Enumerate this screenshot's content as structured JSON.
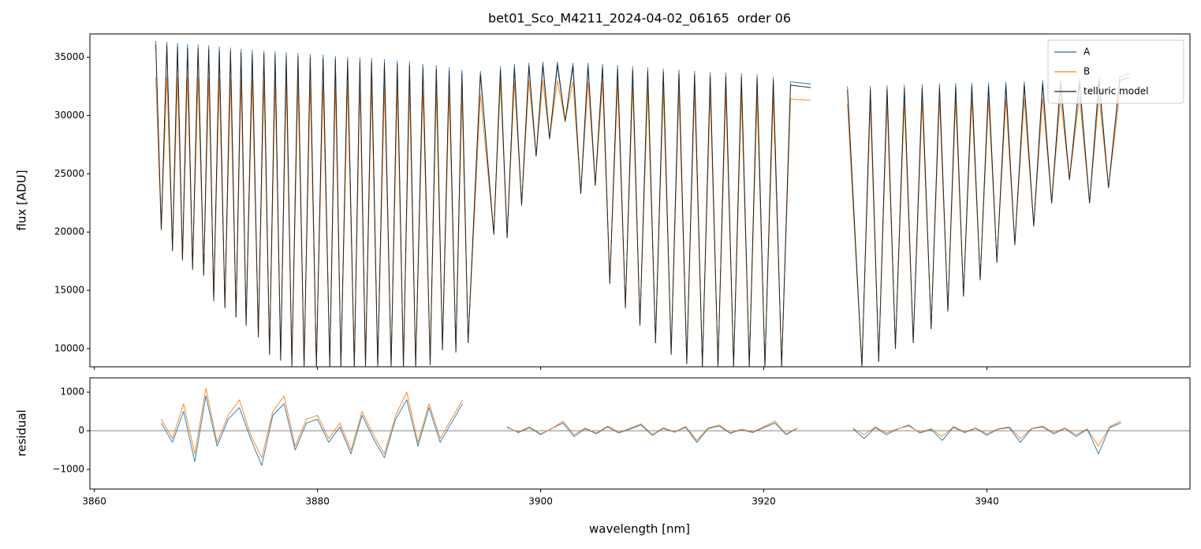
{
  "chart_data": [
    {
      "type": "line",
      "title": "bet01_Sco_M4211_2024-04-02_06165  order 06",
      "ylabel": "flux [ADU]",
      "xlim": [
        3859.6,
        3958.2
      ],
      "ylim": [
        8440,
        37000
      ],
      "yticks": [
        10000,
        15000,
        20000,
        25000,
        30000,
        35000
      ],
      "legend": "upper right",
      "x": [
        3865.5,
        3866.0,
        3866.5,
        3867.0,
        3867.45,
        3867.9,
        3868.35,
        3868.8,
        3869.3,
        3869.8,
        3870.25,
        3870.7,
        3871.2,
        3871.7,
        3872.2,
        3872.7,
        3873.15,
        3873.6,
        3874.15,
        3874.7,
        3875.2,
        3875.7,
        3876.2,
        3876.7,
        3877.2,
        3877.7,
        3878.25,
        3878.8,
        3879.35,
        3879.9,
        3880.5,
        3881.1,
        3881.6,
        3882.1,
        3882.7,
        3883.3,
        3883.8,
        3884.3,
        3884.85,
        3885.4,
        3886.0,
        3886.6,
        3887.15,
        3887.7,
        3888.25,
        3888.8,
        3889.45,
        3890.1,
        3890.65,
        3891.2,
        3891.8,
        3892.4,
        3892.95,
        3893.5,
        3894.6,
        3895.8,
        3896.4,
        3897.0,
        3897.65,
        3898.3,
        3898.95,
        3899.6,
        3900.2,
        3900.8,
        3901.5,
        3902.2,
        3902.9,
        3903.6,
        3904.25,
        3904.9,
        3905.55,
        3906.2,
        3906.9,
        3907.6,
        3908.25,
        3908.9,
        3909.6,
        3910.3,
        3911.0,
        3911.7,
        3912.4,
        3913.1,
        3913.8,
        3914.5,
        3915.2,
        3915.9,
        3916.6,
        3917.3,
        3918.0,
        3918.7,
        3919.4,
        3920.1,
        3920.85,
        3921.6,
        3922.4,
        3924.2,
        3925.5,
        3927.5,
        3928.8,
        3929.55,
        3930.3,
        3931.05,
        3931.8,
        3932.6,
        3933.4,
        3934.2,
        3935.0,
        3935.75,
        3936.5,
        3937.2,
        3937.9,
        3938.65,
        3939.4,
        3940.15,
        3940.9,
        3941.7,
        3942.5,
        3943.35,
        3944.2,
        3945.0,
        3945.8,
        3946.6,
        3947.4,
        3948.3,
        3949.2,
        3950.05,
        3950.9,
        3951.9,
        3952.8
      ],
      "series": [
        {
          "name": "A",
          "color": "#1f77b4",
          "values": [
            36400,
            20200,
            36300,
            18400,
            36200,
            17600,
            36100,
            16800,
            36050,
            16300,
            36000,
            14100,
            35900,
            13500,
            35800,
            12700,
            35700,
            12000,
            35600,
            11000,
            35550,
            9500,
            35500,
            9000,
            35400,
            8500,
            35350,
            8440,
            35250,
            8440,
            35200,
            8440,
            35100,
            8440,
            35000,
            8440,
            34950,
            8440,
            34900,
            8440,
            34800,
            8440,
            34700,
            8440,
            34600,
            8440,
            34400,
            8600,
            34300,
            9900,
            34100,
            9700,
            33900,
            10500,
            33800,
            19800,
            34200,
            19500,
            34400,
            22300,
            34500,
            26500,
            34600,
            28000,
            34600,
            29500,
            34500,
            23300,
            34500,
            24000,
            34400,
            15600,
            34300,
            13500,
            34200,
            12000,
            34100,
            10500,
            34000,
            9500,
            33900,
            8700,
            33800,
            8500,
            33700,
            8440,
            33650,
            8440,
            33600,
            8440,
            33500,
            8440,
            33300,
            8440,
            32900,
            32700,
            null,
            32500,
            8440,
            32500,
            8900,
            32550,
            10000,
            32600,
            10500,
            32650,
            11700,
            32700,
            13200,
            32750,
            14500,
            32800,
            15900,
            32800,
            17400,
            32850,
            18900,
            32900,
            20500,
            33000,
            22500,
            33050,
            24500,
            33100,
            22500,
            33200,
            23800,
            33300,
            33600
          ]
        },
        {
          "name": "B",
          "color": "#ff7f0e",
          "values": [
            33300,
            20200,
            33300,
            18400,
            33250,
            17600,
            33200,
            16800,
            33200,
            16300,
            33150,
            14100,
            33150,
            13500,
            33100,
            12700,
            33100,
            12000,
            33050,
            11000,
            33000,
            9500,
            32950,
            9000,
            32900,
            8500,
            32850,
            8440,
            32800,
            8440,
            32800,
            8440,
            32750,
            8440,
            32700,
            8440,
            32650,
            8440,
            32600,
            8440,
            32500,
            8440,
            32400,
            8440,
            32300,
            8440,
            32200,
            8600,
            32100,
            9900,
            32000,
            9700,
            31800,
            10500,
            31800,
            19800,
            32800,
            19500,
            32900,
            22300,
            33000,
            26500,
            33000,
            28000,
            33000,
            29500,
            32900,
            23300,
            32850,
            24000,
            32800,
            15600,
            32700,
            13500,
            32500,
            12000,
            32300,
            10500,
            32200,
            9500,
            32100,
            8700,
            32050,
            8500,
            32000,
            8440,
            31900,
            8440,
            31800,
            8440,
            31600,
            8440,
            31500,
            8440,
            31400,
            31300,
            null,
            31000,
            8440,
            31000,
            8900,
            31050,
            10000,
            31100,
            10500,
            31200,
            11700,
            31300,
            13200,
            31300,
            14500,
            31350,
            15900,
            31400,
            17400,
            31400,
            18900,
            31450,
            20500,
            31500,
            22500,
            31500,
            24500,
            31600,
            22500,
            31700,
            23800,
            31800,
            32000
          ]
        },
        {
          "name": "telluric model",
          "color": "#222222",
          "values": [
            36100,
            20200,
            36000,
            18400,
            35900,
            17600,
            35800,
            16800,
            35750,
            16300,
            35700,
            14100,
            35600,
            13500,
            35500,
            12700,
            35400,
            12000,
            35300,
            11000,
            35250,
            9500,
            35200,
            9000,
            35100,
            8500,
            35050,
            8440,
            34950,
            8440,
            34900,
            8440,
            34800,
            8440,
            34700,
            8440,
            34650,
            8440,
            34600,
            8440,
            34500,
            8440,
            34400,
            8440,
            34300,
            8440,
            34100,
            8600,
            34000,
            9900,
            33800,
            9700,
            33600,
            10500,
            33500,
            19800,
            33900,
            19500,
            34100,
            22300,
            34200,
            26500,
            34300,
            28000,
            34300,
            29500,
            34200,
            23300,
            34200,
            24000,
            34100,
            15600,
            34000,
            13500,
            33900,
            12000,
            33800,
            10500,
            33700,
            9500,
            33600,
            8700,
            33500,
            8500,
            33400,
            8440,
            33350,
            8440,
            33300,
            8440,
            33200,
            8440,
            33000,
            8440,
            32600,
            32400,
            null,
            32200,
            8440,
            32200,
            8900,
            32250,
            10000,
            32300,
            10500,
            32350,
            11700,
            32400,
            13200,
            32450,
            14500,
            32500,
            15900,
            32500,
            17400,
            32550,
            18900,
            32600,
            20500,
            32700,
            22500,
            32750,
            24500,
            32800,
            22500,
            32900,
            23800,
            33000,
            33300
          ]
        }
      ]
    },
    {
      "type": "line",
      "ylabel": "residual",
      "xlabel": "wavelength [nm]",
      "xlim": [
        3859.6,
        3958.2
      ],
      "ylim": [
        -1510,
        1370
      ],
      "xticks": [
        3860,
        3880,
        3900,
        3920,
        3940
      ],
      "yticks": [
        {
          "value": -1000,
          "label": "−1000"
        },
        0,
        1000
      ],
      "hline": 0,
      "x": [
        3866,
        3867,
        3868,
        3869,
        3870,
        3871,
        3872,
        3873,
        3874,
        3875,
        3876,
        3877,
        3878,
        3879,
        3880,
        3881,
        3882,
        3883,
        3884,
        3885,
        3886,
        3887,
        3888,
        3889,
        3890,
        3891,
        3892,
        3893,
        3895,
        3897,
        3898,
        3899,
        3900,
        3901,
        3902,
        3903,
        3904,
        3905,
        3906,
        3907,
        3908,
        3909,
        3910,
        3911,
        3912,
        3913,
        3914,
        3915,
        3916,
        3917,
        3918,
        3919,
        3920,
        3921,
        3922,
        3923,
        3925,
        3928,
        3929,
        3930,
        3931,
        3932,
        3933,
        3934,
        3935,
        3936,
        3937,
        3938,
        3939,
        3940,
        3941,
        3942,
        3943,
        3944,
        3945,
        3946,
        3947,
        3948,
        3949,
        3950,
        3951,
        3952
      ],
      "series": [
        {
          "name": "A",
          "color": "#1f77b4",
          "values": [
            200,
            -300,
            500,
            -800,
            900,
            -400,
            300,
            600,
            -200,
            -900,
            400,
            700,
            -500,
            200,
            300,
            -300,
            100,
            -600,
            400,
            -200,
            -700,
            300,
            800,
            -400,
            600,
            -300,
            200,
            700,
            null,
            100,
            -50,
            80,
            -100,
            60,
            200,
            -150,
            50,
            -80,
            100,
            -60,
            40,
            150,
            -120,
            60,
            -40,
            90,
            -300,
            50,
            120,
            -70,
            30,
            -50,
            80,
            200,
            -100,
            60,
            null,
            50,
            -200,
            80,
            -100,
            40,
            150,
            -60,
            30,
            -250,
            90,
            -50,
            60,
            -120,
            40,
            80,
            -300,
            50,
            100,
            -80,
            60,
            -150,
            40,
            -600,
            80,
            200
          ]
        },
        {
          "name": "B",
          "color": "#ff7f0e",
          "values": [
            300,
            -200,
            700,
            -600,
            1100,
            -300,
            400,
            800,
            -100,
            -700,
            500,
            900,
            -400,
            300,
            400,
            -200,
            200,
            -500,
            500,
            -100,
            -600,
            400,
            1000,
            -300,
            700,
            -200,
            300,
            800,
            null,
            80,
            -30,
            100,
            -80,
            50,
            250,
            -100,
            70,
            -60,
            120,
            -40,
            60,
            180,
            -100,
            80,
            -30,
            110,
            -250,
            70,
            150,
            -50,
            40,
            -30,
            100,
            250,
            -80,
            70,
            null,
            60,
            -100,
            100,
            -60,
            50,
            120,
            -40,
            50,
            -150,
            110,
            -30,
            70,
            -80,
            50,
            100,
            -200,
            60,
            120,
            -50,
            70,
            -100,
            50,
            -400,
            100,
            250
          ]
        }
      ]
    }
  ]
}
